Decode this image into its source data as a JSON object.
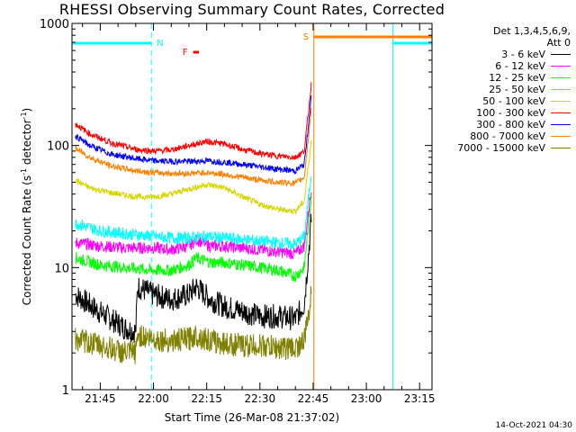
{
  "chart_data": {
    "type": "line",
    "title": "RHESSI Observing Summary Count Rates, Corrected",
    "xlabel": "Start Time (26-Mar-08 21:37:02)",
    "ylabel_main": "Corrected Count Rate (s",
    "ylabel_sup1": "-1",
    "ylabel_mid": " detector",
    "ylabel_sup2": "-1",
    "ylabel_end": ")",
    "y_scale": "log",
    "ylim": [
      1,
      1000
    ],
    "y_ticks": [
      {
        "value": 1,
        "label": "1"
      },
      {
        "value": 10,
        "label": "10"
      },
      {
        "value": 100,
        "label": "100"
      },
      {
        "value": 1000,
        "label": "1000"
      }
    ],
    "xlim_minutes_after_2100": [
      37.03,
      138.5
    ],
    "x_ticks": [
      {
        "minute": 45,
        "label": "21:45"
      },
      {
        "minute": 60,
        "label": "22:00"
      },
      {
        "minute": 75,
        "label": "22:15"
      },
      {
        "minute": 90,
        "label": "22:30"
      },
      {
        "minute": 105,
        "label": "22:45"
      },
      {
        "minute": 120,
        "label": "23:00"
      },
      {
        "minute": 135,
        "label": "23:15"
      }
    ],
    "legend_header": [
      "Det 1,3,4,5,6,9,",
      "Att 0"
    ],
    "series": [
      {
        "name": "3 - 6 keV",
        "color": "#000000",
        "x": [
          38,
          45,
          52,
          55,
          55.5,
          60,
          65,
          70,
          72,
          76,
          80,
          85,
          90,
          95,
          100,
          102.5,
          104.5
        ],
        "y": [
          6,
          4.3,
          3.2,
          3,
          7,
          6,
          5.5,
          6,
          7,
          5.5,
          4.8,
          4.4,
          4,
          4,
          3.8,
          5,
          25
        ]
      },
      {
        "name": "6 - 12 keV",
        "color": "#ff00ff",
        "x": [
          38,
          45,
          52,
          60,
          65,
          70,
          72,
          76,
          80,
          85,
          90,
          95,
          100,
          102.5,
          104.5
        ],
        "y": [
          16,
          15,
          14.5,
          14.5,
          14,
          15,
          17,
          15,
          15,
          14.5,
          14,
          13.5,
          13,
          15,
          45
        ]
      },
      {
        "name": "12 - 25 keV",
        "color": "#00ff00",
        "x": [
          38,
          45,
          52,
          60,
          65,
          70,
          72,
          76,
          80,
          85,
          90,
          95,
          100,
          102.5,
          104.5
        ],
        "y": [
          12,
          10.5,
          10,
          9.5,
          9.5,
          10.5,
          12,
          11,
          11,
          10.5,
          10,
          9.5,
          8.5,
          10,
          40
        ]
      },
      {
        "name": "25 - 50 keV",
        "color": "#00ffff",
        "x": [
          38,
          45,
          52,
          60,
          65,
          70,
          75,
          80,
          85,
          90,
          95,
          100,
          102.5,
          104.5
        ],
        "y": [
          23,
          20,
          19,
          18,
          17.5,
          17.5,
          18,
          17.5,
          17,
          16.5,
          16,
          15.5,
          18,
          60
        ]
      },
      {
        "name": "50 - 100 keV",
        "color": "#d7d700",
        "x": [
          38,
          42,
          48,
          55,
          60,
          65,
          70,
          75,
          80,
          85,
          90,
          95,
          100,
          102.5,
          104.5
        ],
        "y": [
          52,
          45,
          41,
          38,
          38,
          40,
          44,
          48,
          45,
          38,
          33,
          30,
          29,
          35,
          110
        ]
      },
      {
        "name": "100 - 300 keV",
        "color": "#ff0000",
        "x": [
          38,
          42,
          48,
          55,
          60,
          65,
          70,
          75,
          80,
          85,
          90,
          95,
          100,
          102.5,
          104.5
        ],
        "y": [
          150,
          125,
          105,
          93,
          90,
          92,
          100,
          108,
          103,
          93,
          86,
          82,
          80,
          90,
          320
        ]
      },
      {
        "name": "300 - 800 keV",
        "color": "#0000ff",
        "x": [
          38,
          42,
          48,
          55,
          60,
          65,
          70,
          75,
          80,
          85,
          90,
          95,
          100,
          102.5,
          104.5
        ],
        "y": [
          120,
          100,
          85,
          78,
          75,
          74,
          74,
          75,
          73,
          70,
          67,
          64,
          62,
          70,
          250
        ]
      },
      {
        "name": "800 - 7000 keV",
        "color": "#ff8000",
        "x": [
          38,
          42,
          48,
          55,
          60,
          65,
          70,
          75,
          80,
          85,
          90,
          95,
          100,
          102.5,
          104.5
        ],
        "y": [
          95,
          80,
          68,
          62,
          60,
          59,
          59,
          60,
          58,
          55,
          52,
          50,
          49,
          55,
          200
        ]
      },
      {
        "name": "7000 - 15000 keV",
        "color": "#808000",
        "x": [
          38,
          45,
          52,
          55,
          55.5,
          60,
          65,
          70,
          72,
          76,
          80,
          85,
          90,
          95,
          100,
          102.5,
          104.5
        ],
        "y": [
          2.6,
          2.3,
          2.0,
          2.0,
          2.8,
          2.6,
          2.5,
          2.6,
          2.8,
          2.5,
          2.4,
          2.3,
          2.3,
          2.2,
          2.2,
          2.5,
          6
        ]
      }
    ],
    "annotations": [
      {
        "label": "N",
        "color": "#00ffff",
        "kind": "night",
        "start": 37.03,
        "end": 59.4
      },
      {
        "label": "N",
        "color": "#00ffff",
        "kind": "night",
        "start": 127.5,
        "end": 138.5
      },
      {
        "label": "S",
        "color": "#ff8000",
        "kind": "saa",
        "start": 105.2,
        "end": 138.5
      },
      {
        "label": "F",
        "color": "#ff0000",
        "kind": "flare",
        "start": 71.2,
        "end": 72.8
      }
    ],
    "legend_placement": "right",
    "grid": false
  },
  "timestamp": "14-Oct-2021 04:30"
}
